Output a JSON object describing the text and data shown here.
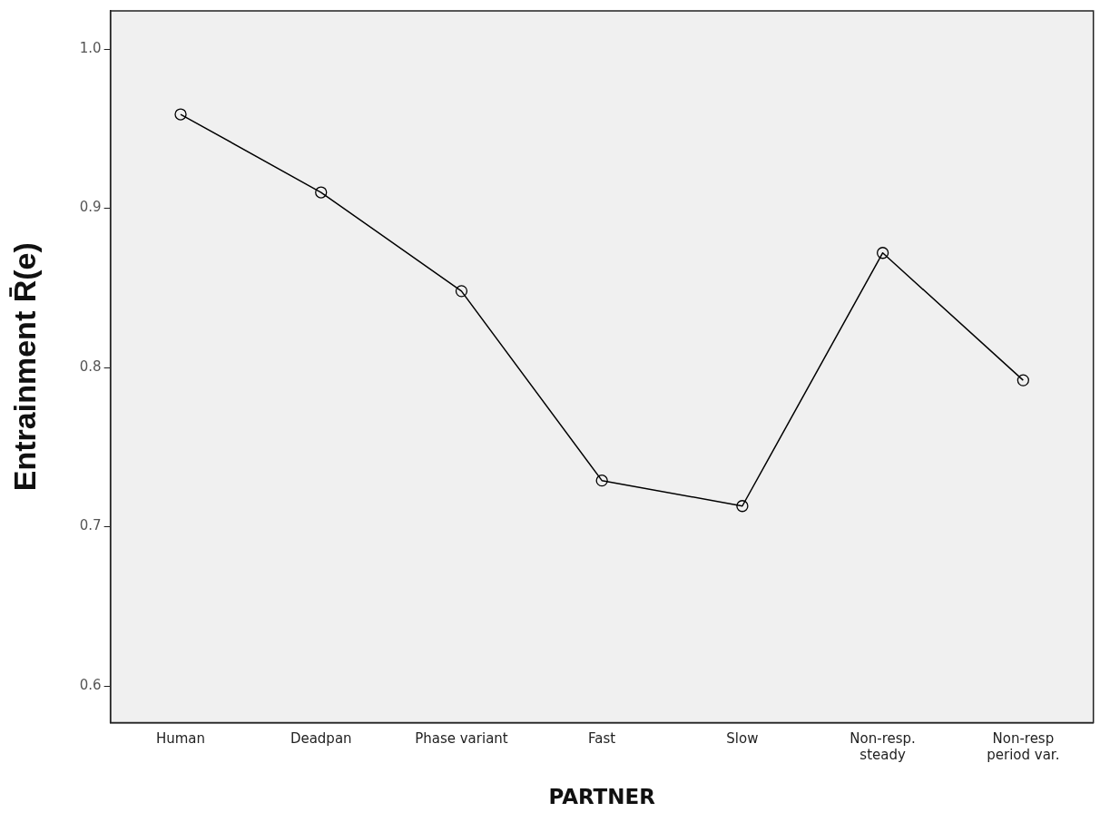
{
  "chart_data": {
    "type": "line",
    "xlabel": "PARTNER",
    "ylabel": "Entrainment R̄(e)",
    "categories": [
      "Human",
      "Deadpan",
      "Phase variant",
      "Fast",
      "Slow",
      "Non-resp.\nsteady",
      "Non-resp\nperiod var."
    ],
    "series": [
      {
        "color": "#000000",
        "values": [
          0.959,
          0.91,
          0.848,
          0.729,
          0.713,
          0.872,
          0.792
        ]
      }
    ],
    "ylim": [
      0.577,
      1.024
    ],
    "yticks": [
      {
        "value": 0.6,
        "label": "0.6"
      },
      {
        "value": 0.7,
        "label": "0.7"
      },
      {
        "value": 0.8,
        "label": "0.8"
      },
      {
        "value": 0.9,
        "label": "0.9"
      },
      {
        "value": 1.0,
        "label": "1.0"
      }
    ],
    "grid": false,
    "legend": false,
    "marker": "circle",
    "line_style": "solid"
  }
}
